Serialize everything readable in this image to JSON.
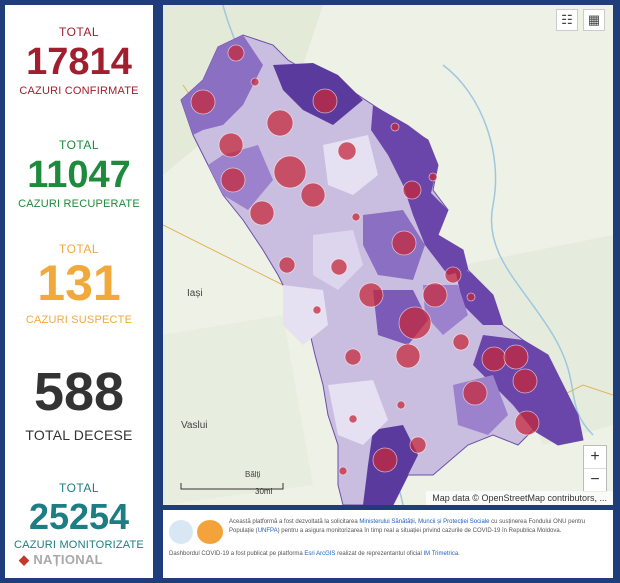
{
  "stats": {
    "confirmed": {
      "label": "TOTAL",
      "value": "17814",
      "caption": "CAZURI CONFIRMATE",
      "color": "#a01e2e"
    },
    "recovered": {
      "label": "TOTAL",
      "value": "11047",
      "caption": "CAZURI RECUPERATE",
      "color": "#1e8a3c"
    },
    "suspect": {
      "label": "TOTAL",
      "value": "131",
      "caption": "CAZURI SUSPECTE",
      "color": "#f2a93b"
    },
    "deaths": {
      "value": "588",
      "caption": "TOTAL DECESE",
      "color": "#333333"
    },
    "monitored": {
      "label": "TOTAL",
      "value": "25254",
      "caption": "CAZURI MONITORIZATE",
      "color": "#1c7e83"
    }
  },
  "map": {
    "labels": {
      "iasi": "Iași",
      "vaslui": "Vaslui",
      "balti": "Bălți"
    },
    "scale_label": "30mi",
    "attribution": "Map data © OpenStreetMap contributors, ...",
    "zoom_in": "+",
    "zoom_out": "−",
    "buttons": {
      "legend": "☷",
      "basemap": "▦"
    }
  },
  "info": {
    "line1_a": "Această platformă a fost dezvoltată la solicitarea ",
    "line1_org": "Ministerului Sănătății, Muncii și Protecției Sociale",
    "line1_b": " cu susținerea Fondului ONU pentru Populație (",
    "line1_unfpa": "UNFPA",
    "line1_c": ") pentru a asigura monitorizarea în timp real a situației privind cazurile de COVID-19 în Republica Moldova.",
    "line2_a": "Dashbordul COVID-19 a fost publicat pe platforma ",
    "line2_esri": "Esri ArcGIS",
    "line2_b": " realizat de reprezentantul oficial ",
    "line2_im": "IM Trimetrica",
    "line2_c": "."
  },
  "brand": {
    "name": "NAȚIONAL"
  }
}
